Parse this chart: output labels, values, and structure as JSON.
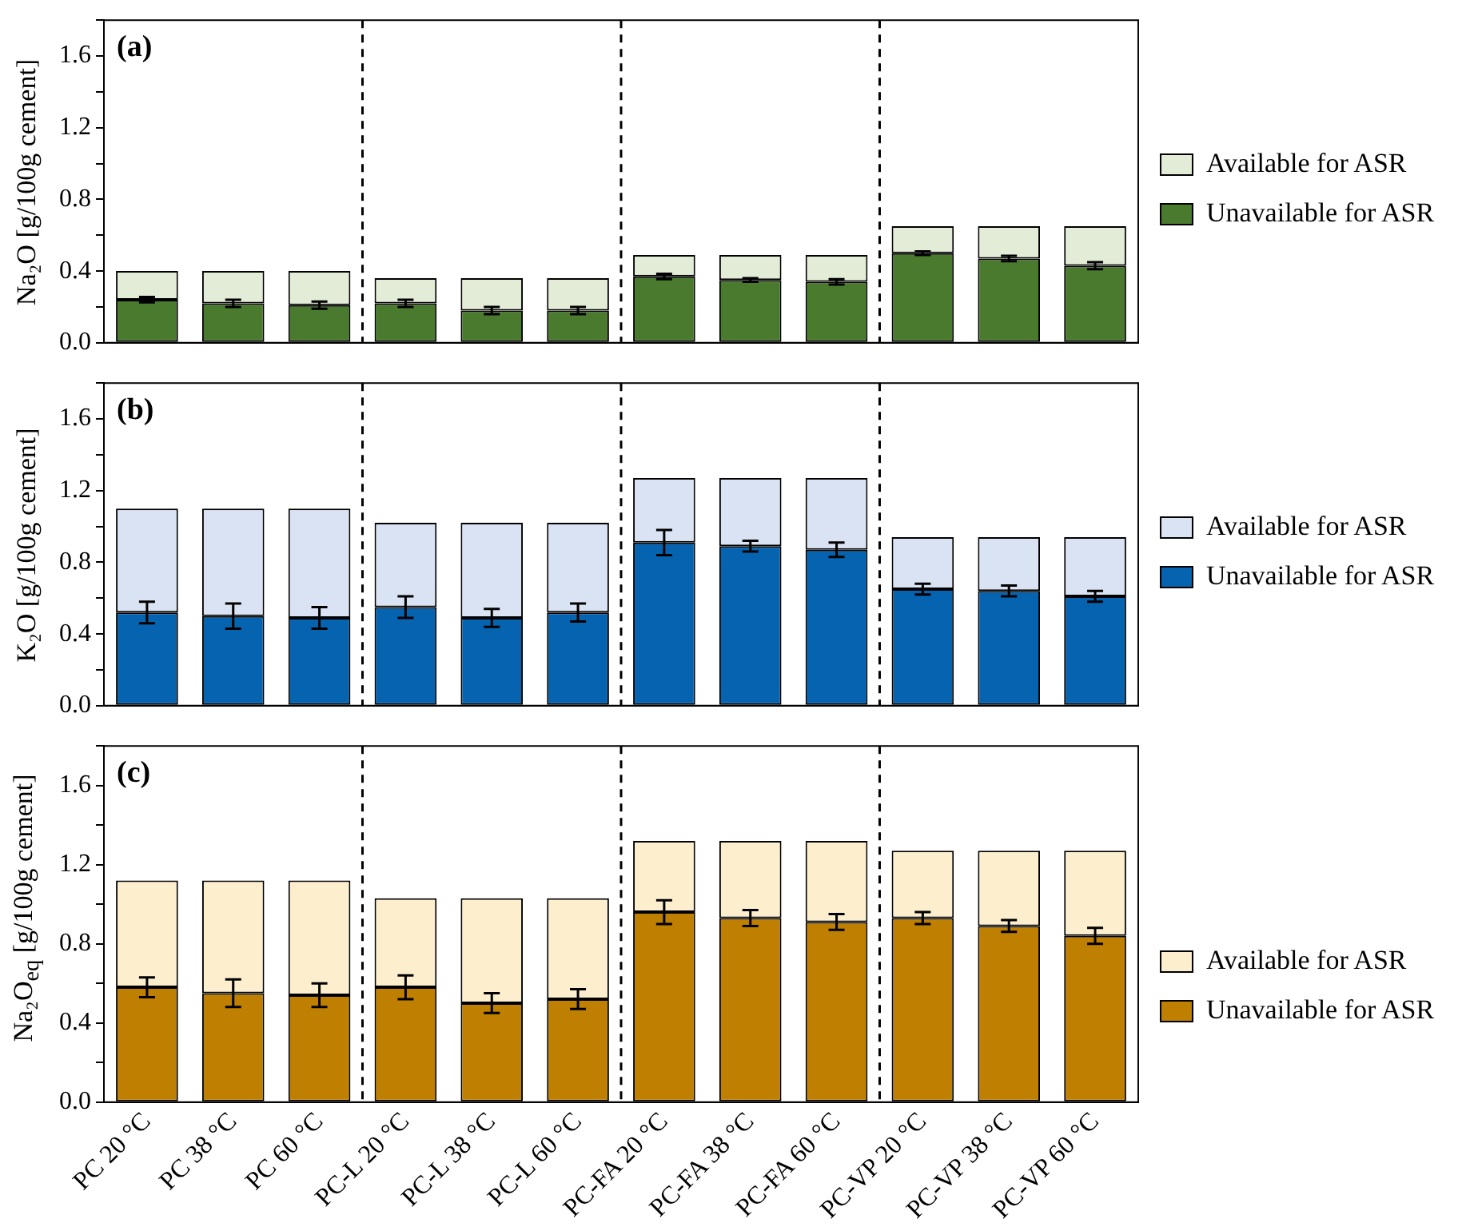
{
  "chart_data": [
    {
      "type": "bar",
      "stacked": true,
      "categories": [
        null,
        null,
        null,
        null,
        null,
        null,
        null,
        null,
        null,
        null,
        null,
        null
      ],
      "ylabel": "Na₂O [g/100g cement]",
      "ylim": [
        0,
        1.8
      ],
      "yticks": [
        {
          "value": 0,
          "label": "0.0"
        },
        {
          "value": 0.2,
          "label": null
        },
        {
          "value": 0.4,
          "label": "0.4"
        },
        {
          "value": 0.6,
          "label": null
        },
        {
          "value": 0.8,
          "label": "0.8"
        },
        {
          "value": 1,
          "label": null
        },
        {
          "value": 1.2,
          "label": "1.2"
        },
        {
          "value": 1.4,
          "label": null
        },
        {
          "value": 1.6,
          "label": "1.6"
        },
        {
          "value": 1.8,
          "label": null
        }
      ],
      "tick_labels": "y",
      "legend": "right",
      "annotations": [
        "(a)"
      ],
      "series": [
        {
          "name": "Unavailable for ASR",
          "color": "#4a7a2e",
          "values": [
            0.24,
            0.22,
            0.21,
            0.22,
            0.18,
            0.18,
            0.37,
            0.35,
            0.34,
            0.5,
            0.47,
            0.43
          ],
          "errors": [
            0.015,
            0.02,
            0.02,
            0.02,
            0.02,
            0.02,
            0.015,
            0.01,
            0.015,
            0.01,
            0.015,
            0.02
          ]
        },
        {
          "name": "Available for ASR",
          "color": "#e3ecd6",
          "values": [
            0.16,
            0.18,
            0.19,
            0.14,
            0.18,
            0.18,
            0.12,
            0.14,
            0.15,
            0.15,
            0.18,
            0.22
          ]
        }
      ]
    },
    {
      "type": "bar",
      "stacked": true,
      "categories": [
        null,
        null,
        null,
        null,
        null,
        null,
        null,
        null,
        null,
        null,
        null,
        null
      ],
      "ylabel": "K₂O [g/100g cement]",
      "ylim": [
        0,
        1.8
      ],
      "yticks": [
        {
          "value": 0,
          "label": "0.0"
        },
        {
          "value": 0.2,
          "label": null
        },
        {
          "value": 0.4,
          "label": "0.4"
        },
        {
          "value": 0.6,
          "label": null
        },
        {
          "value": 0.8,
          "label": "0.8"
        },
        {
          "value": 1,
          "label": null
        },
        {
          "value": 1.2,
          "label": "1.2"
        },
        {
          "value": 1.4,
          "label": null
        },
        {
          "value": 1.6,
          "label": "1.6"
        },
        {
          "value": 1.8,
          "label": null
        }
      ],
      "tick_labels": "y",
      "legend": "right",
      "annotations": [
        "(b)"
      ],
      "series": [
        {
          "name": "Unavailable for ASR",
          "color": "#0563b0",
          "values": [
            0.52,
            0.5,
            0.49,
            0.55,
            0.49,
            0.52,
            0.91,
            0.89,
            0.87,
            0.65,
            0.64,
            0.61
          ],
          "errors": [
            0.06,
            0.07,
            0.06,
            0.06,
            0.05,
            0.05,
            0.07,
            0.03,
            0.04,
            0.03,
            0.03,
            0.03
          ]
        },
        {
          "name": "Available for ASR",
          "color": "#dae3f3",
          "values": [
            0.58,
            0.6,
            0.61,
            0.47,
            0.53,
            0.5,
            0.36,
            0.38,
            0.4,
            0.29,
            0.3,
            0.33
          ]
        }
      ]
    },
    {
      "type": "bar",
      "stacked": true,
      "categories": [
        "PC 20 °C",
        "PC 38 °C",
        "PC 60 °C",
        "PC-L 20 °C",
        "PC-L 38 °C",
        "PC-L 60 °C",
        "PC-FA 20 °C",
        "PC-FA 38 °C",
        "PC-FA 60 °C",
        "PC-VP 20 °C",
        "PC-VP 38 °C",
        "PC-VP 60 °C"
      ],
      "ylabel": "Na₂O$_{eq}$ [g/100g cement]",
      "ylim": [
        0,
        1.8
      ],
      "yticks": [
        {
          "value": 0,
          "label": "0.0"
        },
        {
          "value": 0.2,
          "label": null
        },
        {
          "value": 0.4,
          "label": "0.4"
        },
        {
          "value": 0.6,
          "label": null
        },
        {
          "value": 0.8,
          "label": "0.8"
        },
        {
          "value": 1,
          "label": null
        },
        {
          "value": 1.2,
          "label": "1.2"
        },
        {
          "value": 1.4,
          "label": null
        },
        {
          "value": 1.6,
          "label": "1.6"
        },
        {
          "value": 1.8,
          "label": null
        }
      ],
      "legend": "right",
      "annotations": [
        "(c)"
      ],
      "series": [
        {
          "name": "Unavailable for ASR",
          "color": "#bf7f00",
          "values": [
            0.58,
            0.55,
            0.54,
            0.58,
            0.5,
            0.52,
            0.96,
            0.93,
            0.91,
            0.93,
            0.89,
            0.84
          ],
          "errors": [
            0.05,
            0.07,
            0.06,
            0.06,
            0.05,
            0.05,
            0.06,
            0.04,
            0.04,
            0.03,
            0.03,
            0.04
          ]
        },
        {
          "name": "Available for ASR",
          "color": "#fdefcd",
          "values": [
            0.54,
            0.57,
            0.58,
            0.45,
            0.53,
            0.51,
            0.36,
            0.39,
            0.41,
            0.34,
            0.38,
            0.43
          ]
        }
      ]
    }
  ]
}
